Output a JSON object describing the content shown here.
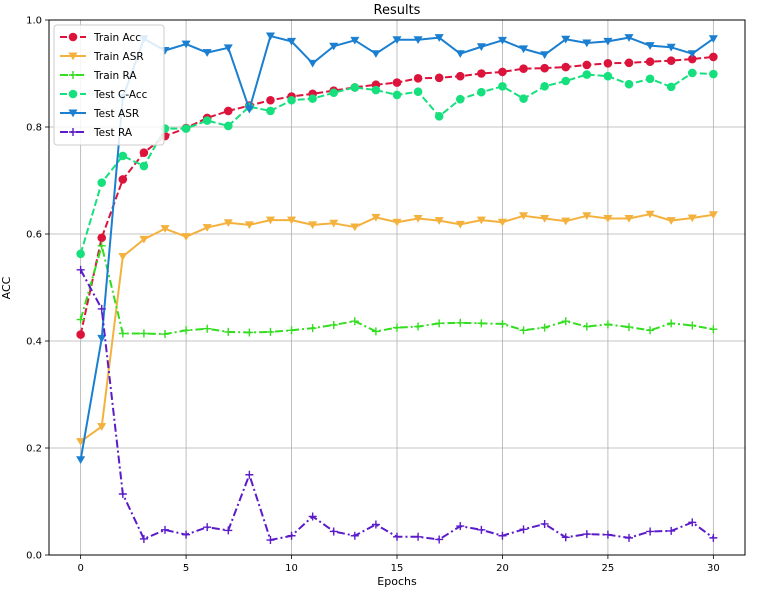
{
  "chart_data": {
    "type": "line",
    "title": "Results",
    "xlabel": "Epochs",
    "ylabel": "ACC",
    "xlim": [
      -1.5,
      31.5
    ],
    "ylim": [
      0.0,
      1.0
    ],
    "xticks": [
      0,
      5,
      10,
      15,
      20,
      25,
      30
    ],
    "yticks": [
      0.0,
      0.2,
      0.4,
      0.6,
      0.8,
      1.0
    ],
    "xtick_labels": [
      "0",
      "5",
      "10",
      "15",
      "20",
      "25",
      "30"
    ],
    "ytick_labels": [
      "0.0",
      "0.2",
      "0.4",
      "0.6",
      "0.8",
      "1.0"
    ],
    "grid": true,
    "legend_position": "top-left",
    "x": [
      0,
      1,
      2,
      3,
      4,
      5,
      6,
      7,
      8,
      9,
      10,
      11,
      12,
      13,
      14,
      15,
      16,
      17,
      18,
      19,
      20,
      21,
      22,
      23,
      24,
      25,
      26,
      27,
      28,
      29,
      30
    ],
    "series": [
      {
        "name": "Train Acc",
        "color": "#dc143c",
        "dash": "dashed",
        "marker": "circle",
        "values": [
          0.412,
          0.593,
          0.702,
          0.752,
          0.783,
          0.798,
          0.817,
          0.83,
          0.84,
          0.85,
          0.857,
          0.862,
          0.868,
          0.874,
          0.879,
          0.883,
          0.891,
          0.892,
          0.895,
          0.9,
          0.903,
          0.909,
          0.91,
          0.912,
          0.916,
          0.919,
          0.92,
          0.922,
          0.924,
          0.927,
          0.931
        ]
      },
      {
        "name": "Train ASR",
        "color": "#f4b13d",
        "dash": "solid",
        "marker": "triangle-down",
        "values": [
          0.212,
          0.24,
          0.558,
          0.59,
          0.61,
          0.595,
          0.612,
          0.621,
          0.617,
          0.626,
          0.626,
          0.617,
          0.62,
          0.613,
          0.631,
          0.622,
          0.629,
          0.625,
          0.618,
          0.626,
          0.622,
          0.634,
          0.629,
          0.624,
          0.634,
          0.629,
          0.629,
          0.637,
          0.625,
          0.63,
          0.636
        ]
      },
      {
        "name": "Train RA",
        "color": "#33dd1f",
        "dash": "dashdot",
        "marker": "plus",
        "values": [
          0.44,
          0.578,
          0.414,
          0.414,
          0.413,
          0.42,
          0.423,
          0.417,
          0.416,
          0.417,
          0.42,
          0.424,
          0.43,
          0.437,
          0.418,
          0.425,
          0.427,
          0.433,
          0.434,
          0.433,
          0.432,
          0.42,
          0.425,
          0.437,
          0.427,
          0.431,
          0.426,
          0.42,
          0.433,
          0.429,
          0.422
        ]
      },
      {
        "name": "Test C-Acc",
        "color": "#16e07d",
        "dash": "dashed",
        "marker": "circle",
        "values": [
          0.563,
          0.696,
          0.746,
          0.727,
          0.797,
          0.797,
          0.812,
          0.802,
          0.838,
          0.83,
          0.85,
          0.853,
          0.864,
          0.874,
          0.869,
          0.86,
          0.866,
          0.82,
          0.852,
          0.865,
          0.876,
          0.853,
          0.876,
          0.886,
          0.898,
          0.895,
          0.88,
          0.89,
          0.875,
          0.901,
          0.899
        ]
      },
      {
        "name": "Test ASR",
        "color": "#1a7fd1",
        "dash": "solid",
        "marker": "triangle-down",
        "values": [
          0.178,
          0.405,
          0.855,
          0.965,
          0.943,
          0.955,
          0.939,
          0.948,
          0.833,
          0.97,
          0.96,
          0.919,
          0.951,
          0.962,
          0.937,
          0.963,
          0.963,
          0.967,
          0.937,
          0.95,
          0.962,
          0.946,
          0.935,
          0.964,
          0.957,
          0.96,
          0.967,
          0.952,
          0.949,
          0.937,
          0.965
        ]
      },
      {
        "name": "Test RA",
        "color": "#5b1bc9",
        "dash": "dashdot",
        "marker": "plus",
        "values": [
          0.533,
          0.46,
          0.114,
          0.03,
          0.047,
          0.038,
          0.052,
          0.046,
          0.15,
          0.028,
          0.036,
          0.072,
          0.044,
          0.036,
          0.057,
          0.034,
          0.034,
          0.029,
          0.054,
          0.047,
          0.036,
          0.048,
          0.058,
          0.033,
          0.039,
          0.038,
          0.032,
          0.044,
          0.045,
          0.061,
          0.032
        ]
      }
    ]
  }
}
